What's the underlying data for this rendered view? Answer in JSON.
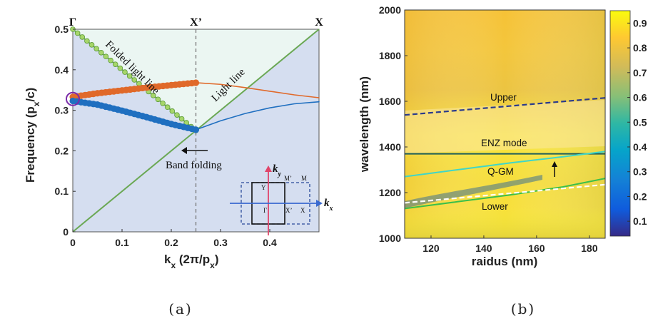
{
  "chart_data": [
    {
      "panel": "(a)",
      "type": "line",
      "xlabel": "k",
      "xlabel_sub": "x",
      "xlabel_tail": " (2π/p",
      "xlabel_tail_sub": "x",
      "xlabel_end": ")",
      "ylabel": "Frequency (p",
      "ylabel_sub": "x",
      "ylabel_end": "/c)",
      "xlim": [
        0,
        0.5
      ],
      "ylim": [
        0,
        0.5
      ],
      "xticks": [
        "0",
        "0.1",
        "0.2",
        "0.3",
        "0.4"
      ],
      "xtick_values": [
        0,
        0.1,
        0.2,
        0.3,
        0.4
      ],
      "yticks": [
        "0",
        "0.1",
        "0.2",
        "0.3",
        "0.4",
        "0.5"
      ],
      "ytick_values": [
        0,
        0.1,
        0.2,
        0.3,
        0.4,
        0.5
      ],
      "top_labels": [
        {
          "text": "Γ",
          "x": 0
        },
        {
          "text": "X’",
          "x": 0.25
        },
        {
          "text": "X",
          "x": 0.5
        }
      ],
      "annotations": {
        "folded_light_line": "Folded light line",
        "light_line": "Light line",
        "band_folding": "Band folding"
      },
      "light_line": {
        "x": [
          0,
          0.5
        ],
        "y": [
          0,
          0.5
        ]
      },
      "folded_light_line": {
        "x": [
          0,
          0.25
        ],
        "y": [
          0.5,
          0.25
        ]
      },
      "series": [
        {
          "x": [
            0,
            0.05,
            0.1,
            0.15,
            0.2,
            0.25
          ],
          "y": [
            0.333,
            0.342,
            0.349,
            0.356,
            0.362,
            0.368
          ],
          "color": "#e0692a"
        },
        {
          "x": [
            0.25,
            0.3,
            0.35,
            0.4,
            0.45,
            0.5
          ],
          "y": [
            0.368,
            0.364,
            0.356,
            0.347,
            0.338,
            0.331
          ],
          "color": "#e0692a"
        },
        {
          "x": [
            0,
            0.05,
            0.1,
            0.15,
            0.2,
            0.25
          ],
          "y": [
            0.323,
            0.314,
            0.299,
            0.283,
            0.266,
            0.252
          ],
          "color": "#1f6fc0"
        },
        {
          "x": [
            0.25,
            0.3,
            0.35,
            0.4,
            0.45,
            0.5
          ],
          "y": [
            0.252,
            0.274,
            0.292,
            0.306,
            0.316,
            0.321
          ],
          "color": "#1f6fc0"
        }
      ],
      "inset": {
        "labels": {
          "ky": "k",
          "ky_sub": "y",
          "kx": "k",
          "kx_sub": "x",
          "Y": "Y",
          "M_prime": "M’",
          "M": "M",
          "Gamma": "Γ",
          "X_prime": "X’",
          "X": "X"
        }
      },
      "colors": {
        "light_fill": "#ebf6f2",
        "cone_fill": "#d5def0",
        "line_green": "#6aa854",
        "marker_green": "#a6d66a"
      }
    },
    {
      "panel": "(b)",
      "type": "heatmap",
      "xlabel": "raidus (nm)",
      "ylabel": "wavelength (nm)",
      "xlim": [
        110,
        186
      ],
      "ylim": [
        1000,
        2000
      ],
      "xticks": [
        "120",
        "140",
        "160",
        "180"
      ],
      "xtick_values": [
        120,
        140,
        160,
        180
      ],
      "yticks": [
        "1000",
        "1200",
        "1400",
        "1600",
        "1800",
        "2000"
      ],
      "ytick_values": [
        1000,
        1200,
        1400,
        1600,
        1800,
        2000
      ],
      "colorbar": {
        "ticks": [
          "0.1",
          "0.2",
          "0.3",
          "0.4",
          "0.5",
          "0.6",
          "0.7",
          "0.8",
          "0.9"
        ],
        "tick_values": [
          0.1,
          0.2,
          0.3,
          0.4,
          0.5,
          0.6,
          0.7,
          0.8,
          0.9
        ],
        "range": [
          0.04,
          0.95
        ]
      },
      "lines": [
        {
          "label": "Upper",
          "style": "dashed",
          "color": "#2a3a8c",
          "x": [
            110,
            186
          ],
          "y": [
            1540,
            1615
          ]
        },
        {
          "label": "ENZ mode",
          "style": "solid",
          "color": "#1f5f5a",
          "x": [
            110,
            186
          ],
          "y": [
            1370,
            1370
          ]
        },
        {
          "label": "Q-GM",
          "style": "solid",
          "color": "#3fd6c8",
          "x": [
            110,
            130,
            150,
            170,
            186
          ],
          "y": [
            1270,
            1300,
            1330,
            1357,
            1380
          ]
        },
        {
          "label": "Lower",
          "style": "solid",
          "color": "#3bbf4a",
          "x": [
            110,
            130,
            150,
            170,
            186
          ],
          "y": [
            1130,
            1160,
            1190,
            1225,
            1262
          ]
        },
        {
          "label": "",
          "style": "dashed",
          "color": "#ffffff",
          "x": [
            110,
            186
          ],
          "y": [
            1155,
            1235
          ]
        }
      ]
    }
  ],
  "captions": {
    "a": "(a)",
    "b": "(b)"
  }
}
